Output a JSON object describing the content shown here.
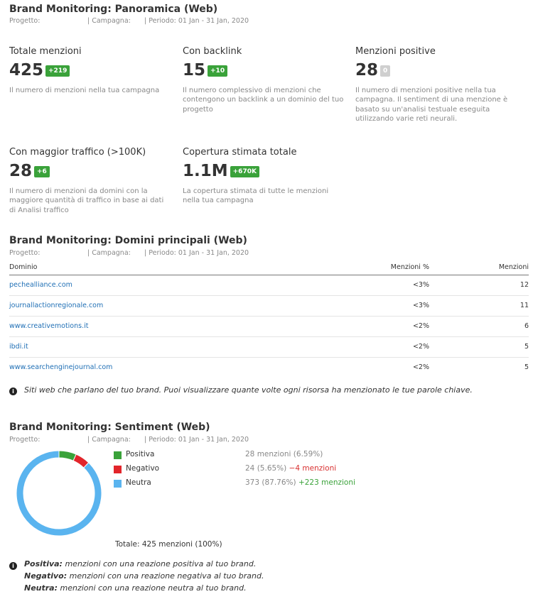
{
  "overview": {
    "title": "Brand Monitoring: Panoramica (Web)",
    "meta": {
      "progetto": "Progetto:",
      "campagna": "| Campagna:",
      "periodo": "| Periodo: 01 Jan - 31 Jan, 2020"
    },
    "kpis": [
      {
        "label": "Totale menzioni",
        "value": "425",
        "delta": "+219",
        "desc": "Il numero di menzioni nella tua campagna"
      },
      {
        "label": "Con backlink",
        "value": "15",
        "delta": "+10",
        "desc": "Il numero complessivo di menzioni che contengono un backlink a un dominio del tuo progetto"
      },
      {
        "label": "Menzioni positive",
        "value": "28",
        "delta": "0",
        "desc": "Il numero di menzioni positive nella tua campagna. Il sentiment di una menzione è basato su un'analisi testuale eseguita utilizzando varie reti neurali."
      },
      {
        "label": "Con maggior traffico (>100K)",
        "value": "28",
        "delta": "+6",
        "desc": "Il numero di menzioni da domini con la maggiore quantità di traffico in base ai dati di Analisi traffico"
      },
      {
        "label": "Copertura stimata totale",
        "value": "1.1M",
        "delta": "+670K",
        "desc": "La copertura stimata di tutte le menzioni nella tua campagna"
      }
    ]
  },
  "domains": {
    "title": "Brand Monitoring: Domini principali (Web)",
    "meta": {
      "progetto": "Progetto:",
      "campagna": "| Campagna:",
      "periodo": "| Periodo: 01 Jan - 31 Jan, 2020"
    },
    "columns": {
      "domain": "Dominio",
      "percent": "Menzioni %",
      "mentions": "Menzioni"
    },
    "rows": [
      {
        "domain": "pechealliance.com",
        "percent": "<3%",
        "mentions": "12"
      },
      {
        "domain": "journallactionregionale.com",
        "percent": "<3%",
        "mentions": "11"
      },
      {
        "domain": "www.creativemotions.it",
        "percent": "<2%",
        "mentions": "6"
      },
      {
        "domain": "ibdi.it",
        "percent": "<2%",
        "mentions": "5"
      },
      {
        "domain": "www.searchenginejournal.com",
        "percent": "<2%",
        "mentions": "5"
      }
    ],
    "note": "Siti web che parlano del tuo brand. Puoi visualizzare quante volte ogni risorsa ha menzionato le tue parole chiave."
  },
  "sentiment": {
    "title": "Brand Monitoring: Sentiment (Web)",
    "meta": {
      "progetto": "Progetto:",
      "campagna": "| Campagna:",
      "periodo": "| Periodo: 01 Jan - 31 Jan, 2020"
    },
    "legend": [
      {
        "label": "Positiva",
        "value": "28 menzioni (6.59%)",
        "delta": "",
        "color": "#3aa23a"
      },
      {
        "label": "Negativo",
        "value": "24 (5.65%)",
        "delta": "−4 menzioni",
        "color": "#e2252b"
      },
      {
        "label": "Neutra",
        "value": "373 (87.76%)",
        "delta": "+223 menzioni",
        "color": "#5ab4ef"
      }
    ],
    "total": "Totale: 425 menzioni (100%)",
    "explanations": [
      {
        "term": "Positiva:",
        "text": " menzioni con una reazione positiva al tuo brand."
      },
      {
        "term": "Negativo:",
        "text": " menzioni con una reazione negativa al tuo brand."
      },
      {
        "term": "Neutra:",
        "text": " menzioni con una reazione neutra al tuo brand."
      }
    ]
  },
  "chart_data": {
    "type": "pie",
    "categories": [
      "Positiva",
      "Negativo",
      "Neutra"
    ],
    "values": [
      28,
      24,
      373
    ],
    "percent": [
      6.59,
      5.65,
      87.76
    ],
    "colors": [
      "#3aa23a",
      "#e2252b",
      "#5ab4ef"
    ],
    "title": "",
    "legend": "right"
  }
}
